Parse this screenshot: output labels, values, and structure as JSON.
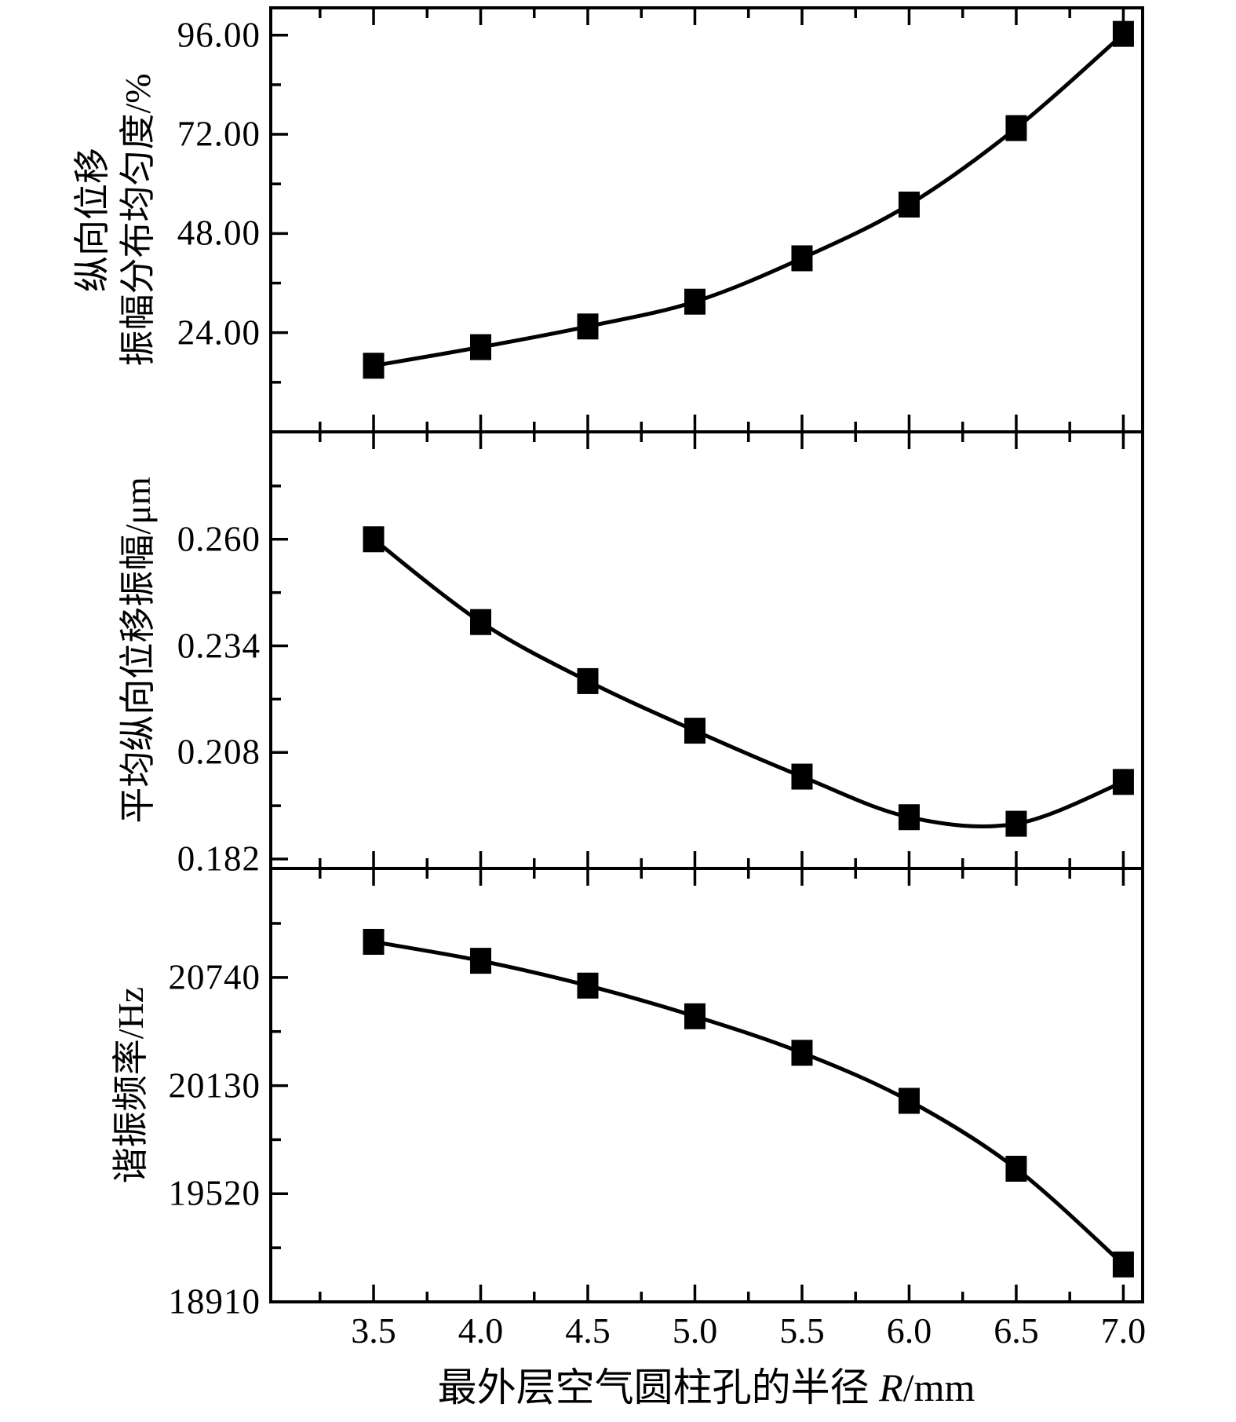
{
  "chart_data": {
    "type": "line",
    "title": "",
    "legend": "none",
    "grid": false,
    "background": "#ffffff",
    "line_color": "#000000",
    "marker": "filled-square",
    "x": [
      3.5,
      4.0,
      4.5,
      5.0,
      5.5,
      6.0,
      6.5,
      7.0
    ],
    "xlim": [
      3.02,
      7.09
    ],
    "xticks": [
      3.5,
      4.0,
      4.5,
      5.0,
      5.5,
      6.0,
      6.5,
      7.0
    ],
    "xtick_labels": [
      "3.5",
      "4.0",
      "4.5",
      "5.0",
      "5.5",
      "6.0",
      "6.5",
      "7.0"
    ],
    "x_minor": [
      3.25,
      3.75,
      4.25,
      4.75,
      5.25,
      5.75,
      6.25,
      6.75
    ],
    "xlabel": {
      "prefix": "最外层空气圆柱孔的半径 ",
      "symbol": "R",
      "suffix": "/mm"
    },
    "panels": [
      {
        "name": "longitudinal-displacement-uniformity",
        "ylabel_lines": [
          "纵向位移",
          "振幅分布均匀度/%"
        ],
        "ylabel": "纵向位移 振幅分布均匀度/%",
        "ylim": [
          0,
          102.6
        ],
        "yticks": [
          24,
          48,
          72,
          96
        ],
        "ytick_labels": [
          "24.00",
          "48.00",
          "72.00",
          "96.00"
        ],
        "y_minor": [
          12,
          36,
          60,
          84
        ],
        "values": [
          16.0,
          20.5,
          25.5,
          31.5,
          42.0,
          55.0,
          73.5,
          96.3
        ]
      },
      {
        "name": "mean-longitudinal-displacement-amplitude",
        "ylabel_lines": [
          "平均纵向位移振幅/μm"
        ],
        "ylabel": "平均纵向位移振幅/μm",
        "ylim": [
          0.1797,
          0.2862
        ],
        "yticks": [
          0.182,
          0.208,
          0.234,
          0.26
        ],
        "ytick_labels": [
          "0.182",
          "0.208",
          "0.234",
          "0.260"
        ],
        "y_minor": [
          0.195,
          0.221,
          0.247,
          0.273
        ],
        "values": [
          0.26,
          0.2398,
          0.2254,
          0.2133,
          0.2021,
          0.1922,
          0.1906,
          0.2008
        ]
      },
      {
        "name": "resonance-frequency",
        "ylabel_lines": [
          "谐振频率/Hz"
        ],
        "ylabel": "谐振频率/Hz",
        "ylim": [
          18910,
          21355
        ],
        "yticks": [
          18910,
          19520,
          20130,
          20740
        ],
        "ytick_labels": [
          "18910",
          "19520",
          "20130",
          "20740"
        ],
        "y_minor": [
          19215,
          19825,
          20435,
          21045
        ],
        "values": [
          20941,
          20834,
          20694,
          20521,
          20315,
          20044,
          19661,
          19121
        ]
      }
    ]
  }
}
